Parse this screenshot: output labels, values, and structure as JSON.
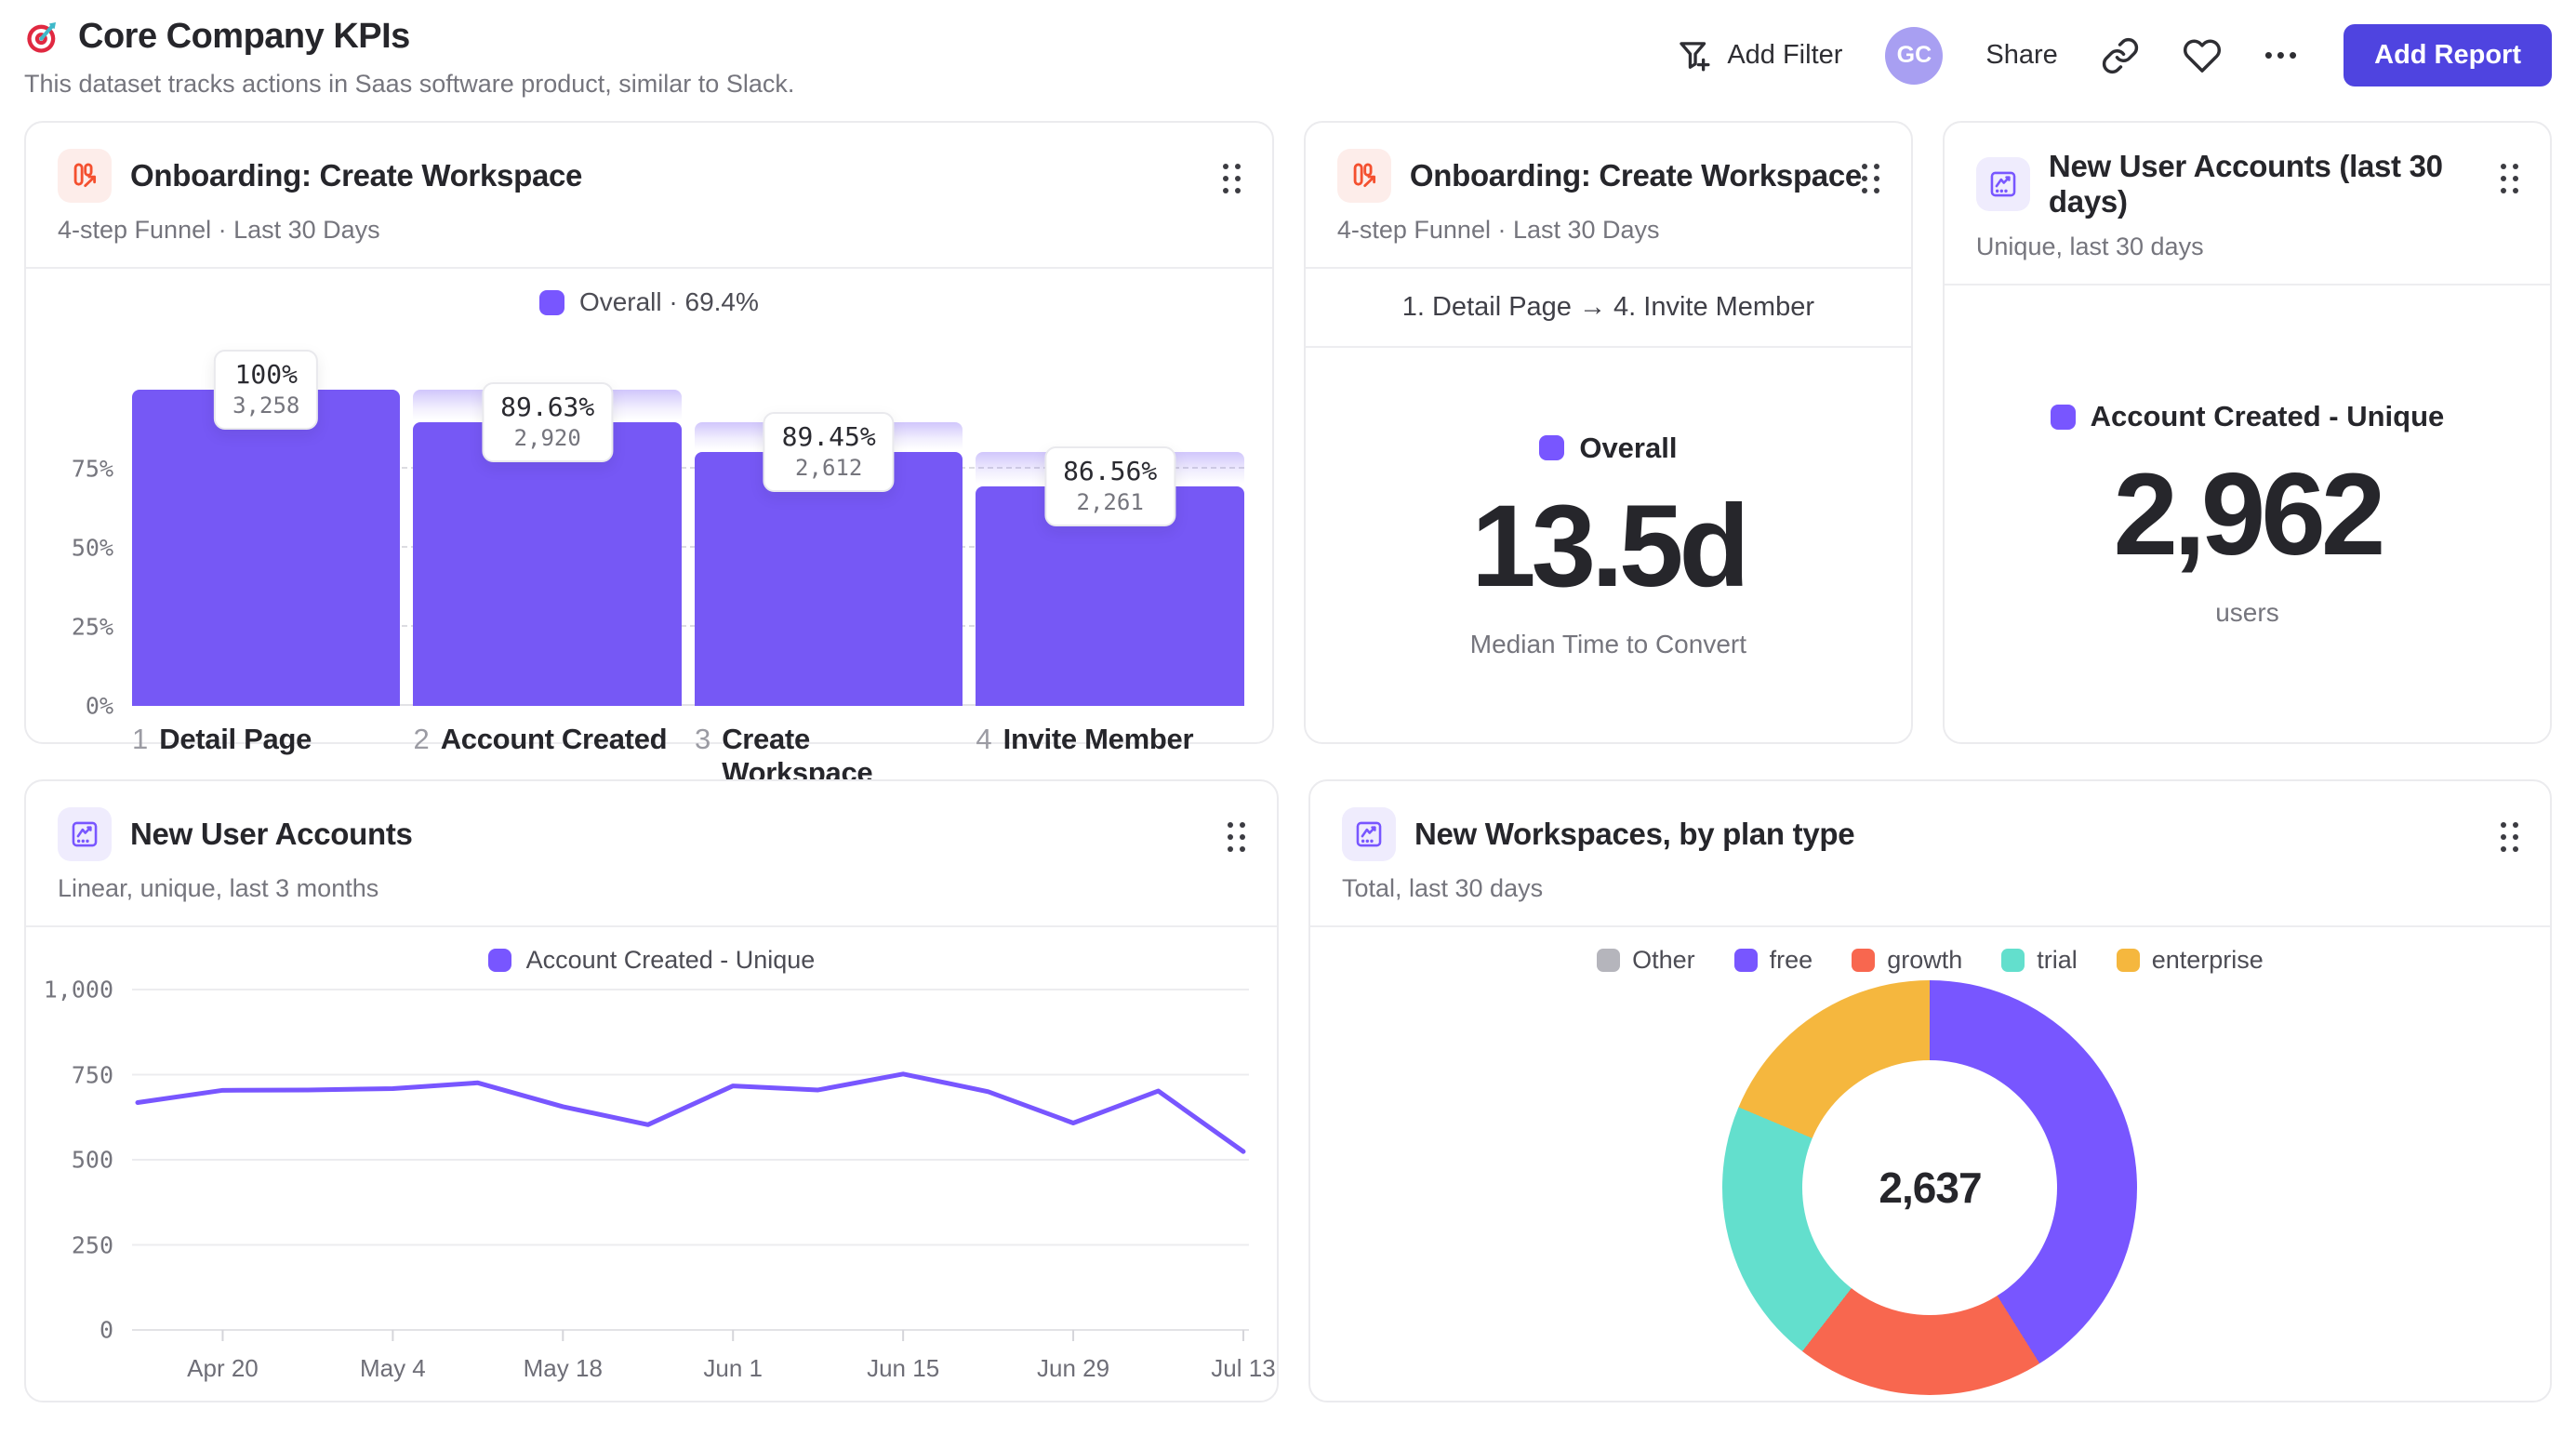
{
  "header": {
    "title": "Core Company KPIs",
    "subtitle": "This dataset tracks actions in Saas software product, similar to Slack.",
    "toolbar": {
      "add_filter": "Add Filter",
      "avatar_initials": "GC",
      "share": "Share",
      "more": "•••",
      "add_report": "Add Report"
    },
    "icons": [
      "target-icon",
      "filter-plus-icon",
      "link-icon",
      "heart-icon",
      "ellipsis-icon"
    ]
  },
  "colors": {
    "primary": "#7856ff",
    "button": "#4f44e0",
    "avatar": "#a89ff2",
    "funnel_icon": "#f4502f",
    "grid": "#dcdce1"
  },
  "cards": {
    "funnel": {
      "title": "Onboarding: Create Workspace",
      "subtitle": "4-step Funnel · Last 30 Days",
      "icon": "funnel-chart-icon"
    },
    "time": {
      "title": "Onboarding: Create Workspace",
      "subtitle": "4-step Funnel · Last 30 Days",
      "icon": "funnel-chart-icon"
    },
    "users30": {
      "title": "New User Accounts (last 30 days)",
      "subtitle": "Unique, last 30 days",
      "icon": "insights-chart-icon"
    },
    "line": {
      "title": "New User Accounts",
      "subtitle": "Linear, unique, last 3 months",
      "icon": "insights-chart-icon"
    },
    "donut": {
      "title": "New Workspaces, by plan type",
      "subtitle": "Total, last 30 days",
      "icon": "insights-chart-icon"
    }
  },
  "chart_data": [
    {
      "id": "onboarding-funnel",
      "type": "bar",
      "legend": "Overall · 69.4%",
      "overall_pct": 69.4,
      "yticks": [
        "0%",
        "25%",
        "50%",
        "75%"
      ],
      "ylim": [
        0,
        100
      ],
      "steps": [
        {
          "n": "1",
          "label": "Detail Page",
          "pct_label": "100%",
          "count_label": "3,258",
          "count": 3258,
          "cumulative_pct": 100
        },
        {
          "n": "2",
          "label": "Account Created",
          "pct_label": "89.63%",
          "count_label": "2,920",
          "count": 2920,
          "cumulative_pct": 89.63
        },
        {
          "n": "3",
          "label": "Create Workspace",
          "pct_label": "89.45%",
          "count_label": "2,612",
          "count": 2612,
          "cumulative_pct": 80.17
        },
        {
          "n": "4",
          "label": "Invite Member",
          "pct_label": "86.56%",
          "count_label": "2,261",
          "count": 2261,
          "cumulative_pct": 69.4
        }
      ]
    },
    {
      "id": "median-time-to-convert",
      "type": "metric",
      "range": "1. Detail Page → 4. Invite Member",
      "legend": "Overall",
      "value": "13.5d",
      "caption": "Median Time to Convert"
    },
    {
      "id": "new-user-accounts-30d",
      "type": "metric",
      "legend": "Account Created - Unique",
      "value": "2,962",
      "caption": "users"
    },
    {
      "id": "new-user-accounts-line",
      "type": "line",
      "legend": "Account Created - Unique",
      "values": [
        668,
        704,
        705,
        709,
        726,
        656,
        603,
        717,
        705,
        752,
        700,
        608,
        702,
        524
      ],
      "ylim": [
        0,
        1000
      ],
      "yticks": [
        0,
        250,
        500,
        750,
        1000
      ],
      "ytick_labels": [
        "0",
        "250",
        "500",
        "750",
        "1,000"
      ],
      "xtick_labels": [
        "Apr 20",
        "May 4",
        "May 18",
        "Jun 1",
        "Jun 15",
        "Jun 29",
        "Jul 13"
      ],
      "xtick_indices": [
        1,
        3,
        5,
        7,
        9,
        11,
        13
      ],
      "grid": true,
      "legend_position": "top"
    },
    {
      "id": "workspaces-by-plan-donut",
      "type": "pie",
      "center_total": "2,637",
      "total": 2637,
      "slices": [
        {
          "label": "Other",
          "value": 0,
          "color": "#b5b5bc"
        },
        {
          "label": "free",
          "value": 1084,
          "color": "#7856ff"
        },
        {
          "label": "growth",
          "value": 512,
          "color": "#f8674f"
        },
        {
          "label": "trial",
          "value": 549,
          "color": "#63dfcd"
        },
        {
          "label": "enterprise",
          "value": 492,
          "color": "#f5b73e"
        }
      ]
    }
  ]
}
